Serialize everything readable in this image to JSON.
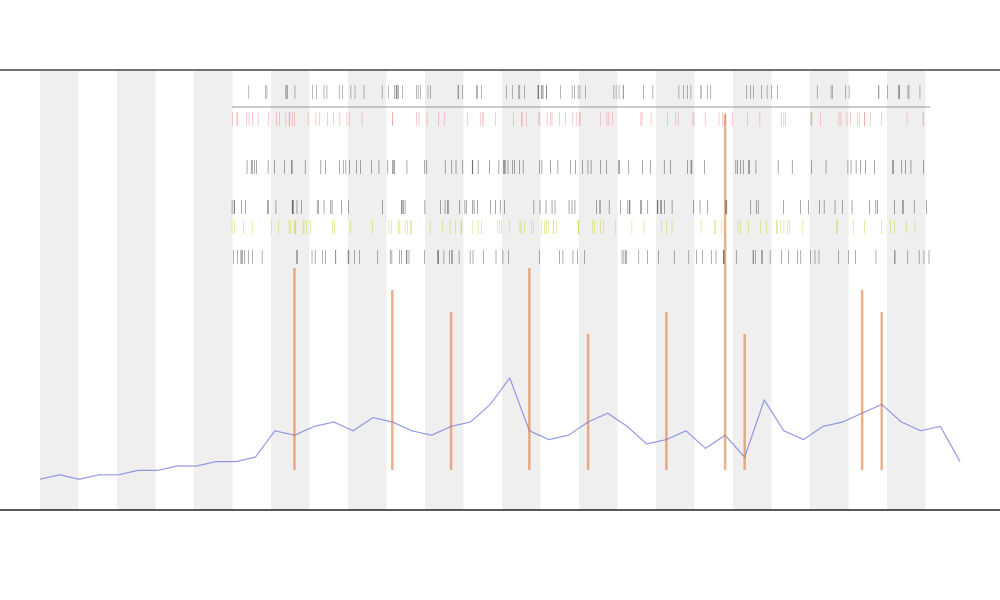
{
  "chart_data": {
    "type": "line",
    "x": [
      0,
      1,
      2,
      3,
      4,
      5,
      6,
      7,
      8,
      9,
      10,
      11,
      12,
      13,
      14,
      15,
      16,
      17,
      18,
      19,
      20,
      21,
      22,
      23,
      24,
      25,
      26,
      27,
      28,
      29,
      30,
      31,
      32,
      33,
      34,
      35,
      36,
      37,
      38,
      39,
      40,
      41,
      42,
      43,
      44,
      45,
      46,
      47
    ],
    "xlim": [
      0,
      47
    ],
    "ylim": [
      0,
      100
    ],
    "series": [
      {
        "color": "#7b7fe0",
        "values": [
          7,
          8,
          7,
          8,
          8,
          9,
          9,
          10,
          10,
          11,
          11,
          12,
          18,
          17,
          19,
          20,
          18,
          21,
          20,
          18,
          17,
          19,
          20,
          24,
          30,
          18,
          16,
          17,
          20,
          22,
          19,
          15,
          16,
          18,
          14,
          17,
          12,
          25,
          18,
          16,
          19,
          20,
          22,
          24,
          20,
          18,
          19,
          11
        ]
      },
      {
        "color": "#e0702a",
        "style": "stem",
        "values": [
          null,
          null,
          null,
          null,
          null,
          null,
          null,
          null,
          null,
          null,
          null,
          null,
          null,
          55,
          null,
          null,
          null,
          null,
          50,
          null,
          null,
          45,
          null,
          null,
          null,
          55,
          null,
          null,
          40,
          null,
          null,
          null,
          45,
          null,
          null,
          90,
          40,
          null,
          null,
          null,
          null,
          null,
          50,
          45,
          null,
          null,
          null,
          null
        ]
      }
    ]
  }
}
